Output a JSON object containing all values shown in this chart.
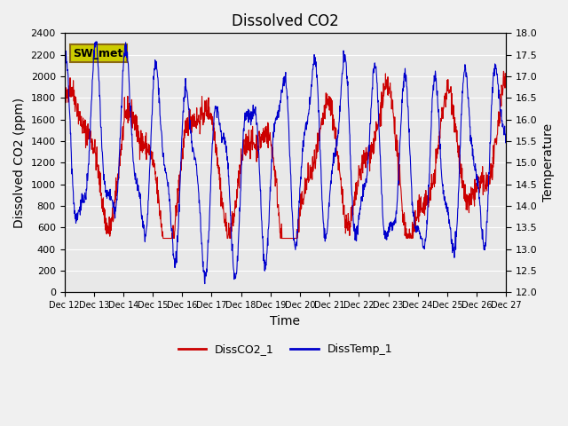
{
  "title": "Dissolved CO2",
  "xlabel": "Time",
  "ylabel_left": "Dissolved CO2 (ppm)",
  "ylabel_right": "Temperature",
  "ylim_left": [
    0,
    2400
  ],
  "ylim_right": [
    12.0,
    18.0
  ],
  "yticks_left": [
    0,
    200,
    400,
    600,
    800,
    1000,
    1200,
    1400,
    1600,
    1800,
    2000,
    2200,
    2400
  ],
  "yticks_right": [
    12.0,
    12.5,
    13.0,
    13.5,
    14.0,
    14.5,
    15.0,
    15.5,
    16.0,
    16.5,
    17.0,
    17.5,
    18.0
  ],
  "color_co2": "#cc0000",
  "color_temp": "#0000cc",
  "legend_entries": [
    "DissCO2_1",
    "DissTemp_1"
  ],
  "annotation_text": "SW_met",
  "annotation_bg": "#cccc00",
  "annotation_border": "#8B6914",
  "background_color": "#e8e8e8",
  "grid_color": "#ffffff",
  "title_fontsize": 12,
  "axis_label_fontsize": 10,
  "tick_label_fontsize": 8,
  "x_tick_labels": [
    "Dec 12",
    "Dec 13",
    "Dec 14",
    "Dec 15",
    "Dec 16",
    "Dec 17",
    "Dec 18",
    "Dec 19",
    "Dec 20",
    "Dec 21",
    "Dec 22",
    "Dec 23",
    "Dec 24",
    "Dec 25",
    "Dec 26",
    "Dec 27"
  ],
  "x_extra_label": "Dec 27"
}
